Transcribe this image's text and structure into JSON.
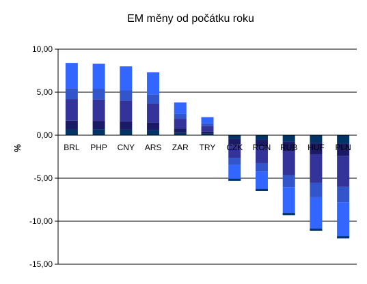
{
  "chart_data": {
    "type": "bar",
    "title": "EM měny od počátku roku",
    "xlabel": "",
    "ylabel": "%",
    "ylim": [
      -15,
      10
    ],
    "yticks": [
      "10,00",
      "5,00",
      "0,00",
      "-5,00",
      "-10,00",
      "-15,00"
    ],
    "categories": [
      "BRL",
      "PHP",
      "CNY",
      "ARS",
      "ZAR",
      "TRY",
      "CZK",
      "RON",
      "RUB",
      "HUF",
      "PLN"
    ],
    "values": [
      8.4,
      8.3,
      8.0,
      7.3,
      3.8,
      2.1,
      -5.3,
      -6.5,
      -9.3,
      -11.1,
      -12.0
    ],
    "grid": true,
    "legend": "none",
    "colors": {
      "bar_top": "#3366ff",
      "bar_mid": "#3355cc",
      "bar_deep": "#333399",
      "bar_base": "#1a1a66",
      "bar_edge": "#003366",
      "axis": "#000000",
      "grid": "#000000"
    }
  }
}
